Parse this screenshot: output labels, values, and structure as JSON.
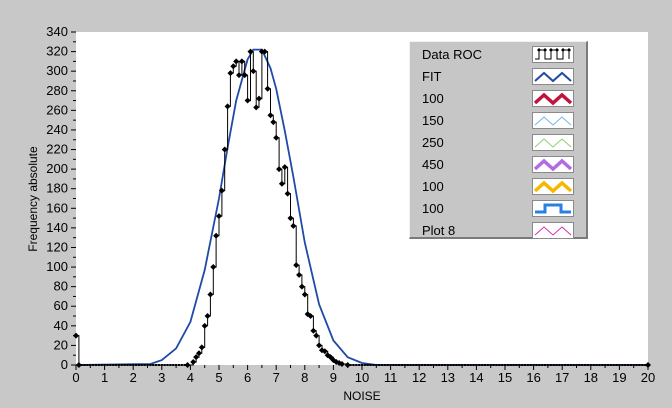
{
  "chart_data": {
    "type": "line",
    "title": "",
    "xlabel": "NOISE",
    "ylabel": "Frequency absolute",
    "xlim": [
      0,
      20
    ],
    "ylim": [
      0,
      340
    ],
    "x_ticks": [
      "0",
      "1",
      "2",
      "3",
      "4",
      "5",
      "6",
      "7",
      "8",
      "9",
      "10",
      "11",
      "12",
      "13",
      "14",
      "15",
      "16",
      "17",
      "18",
      "19",
      "20"
    ],
    "y_ticks": [
      "0",
      "20",
      "40",
      "60",
      "80",
      "100",
      "120",
      "140",
      "160",
      "180",
      "200",
      "220",
      "240",
      "260",
      "280",
      "300",
      "320",
      "340"
    ],
    "grid": false,
    "legend_position": "top-right",
    "series": [
      {
        "name": "Data ROC",
        "color": "#000000",
        "style": "step-markers",
        "x": [
          0,
          0.1,
          3.9,
          4.1,
          4.2,
          4.3,
          4.4,
          4.5,
          4.6,
          4.7,
          4.8,
          4.9,
          5.0,
          5.1,
          5.2,
          5.3,
          5.4,
          5.5,
          5.6,
          5.7,
          5.8,
          5.9,
          6.0,
          6.1,
          6.2,
          6.3,
          6.4,
          6.5,
          6.6,
          6.7,
          6.8,
          6.9,
          7.0,
          7.1,
          7.2,
          7.3,
          7.4,
          7.5,
          7.6,
          7.7,
          7.8,
          7.9,
          8.0,
          8.1,
          8.2,
          8.3,
          8.4,
          8.5,
          8.6,
          8.7,
          8.8,
          8.9,
          9.0,
          9.1,
          9.2,
          9.3,
          9.5,
          20
        ],
        "y": [
          30,
          0,
          0,
          3,
          8,
          12,
          18,
          40,
          50,
          72,
          100,
          132,
          152,
          178,
          220,
          264,
          298,
          305,
          310,
          296,
          310,
          296,
          270,
          320,
          300,
          263,
          272,
          320,
          320,
          282,
          255,
          248,
          232,
          200,
          185,
          202,
          175,
          150,
          142,
          102,
          92,
          80,
          72,
          52,
          50,
          35,
          30,
          20,
          15,
          14,
          10,
          8,
          5,
          3,
          2,
          1,
          0,
          0
        ]
      },
      {
        "name": "FIT",
        "color": "#1f4aa8",
        "style": "line",
        "model": "gaussian",
        "x": [
          0,
          2.6,
          3.0,
          3.5,
          4.0,
          4.5,
          5.0,
          5.3,
          5.6,
          6.0,
          6.2,
          6.5,
          6.8,
          7.0,
          7.3,
          7.6,
          8.0,
          8.5,
          9.0,
          9.5,
          10.0,
          10.5,
          20
        ],
        "y": [
          0,
          1,
          5,
          17,
          44,
          97,
          170,
          222,
          270,
          312,
          322,
          322,
          303,
          282,
          239,
          192,
          125,
          62,
          25,
          8,
          2,
          0,
          0
        ]
      }
    ],
    "legend_entries": [
      {
        "label": "Data ROC",
        "color": "#000000",
        "swatch": "square-wave-markers"
      },
      {
        "label": "FIT",
        "color": "#1f4aa8",
        "swatch": "zigzag-thick"
      },
      {
        "label": "100",
        "color": "#c0143c",
        "swatch": "zigzag-bold"
      },
      {
        "label": "150",
        "color": "#6ab8e8",
        "swatch": "zigzag-thin"
      },
      {
        "label": "250",
        "color": "#8fce6a",
        "swatch": "zigzag-thin"
      },
      {
        "label": "450",
        "color": "#b36be0",
        "swatch": "zigzag-bold"
      },
      {
        "label": "100",
        "color": "#f5b800",
        "swatch": "zigzag-bold"
      },
      {
        "label": "100",
        "color": "#2b7fe0",
        "swatch": "square-pulse"
      },
      {
        "label": "Plot 8",
        "color": "#d030b0",
        "swatch": "zigzag-thin"
      }
    ]
  }
}
